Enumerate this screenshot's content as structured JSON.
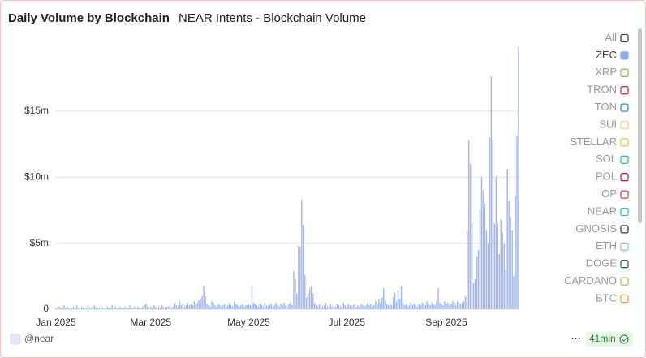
{
  "chart_data": {
    "type": "bar",
    "title": "Daily Volume by Blockchain",
    "subtitle": "NEAR Intents - Blockchain Volume",
    "color": "#a4b9f2",
    "ylim": [
      0,
      20.5
    ],
    "yticks": [
      0,
      {
        "value": 5,
        "label": "$5m"
      },
      {
        "value": 10,
        "label": "$10m"
      },
      {
        "value": 15,
        "label": "$15m"
      }
    ],
    "grid": true,
    "categories": [
      "Jan 2025",
      null,
      null,
      null,
      null,
      null,
      null,
      null,
      null,
      null,
      null,
      null,
      null,
      null,
      null,
      null,
      null,
      null,
      null,
      null,
      null,
      null,
      null,
      null,
      null,
      null,
      null,
      null,
      null,
      null,
      null,
      null,
      null,
      null,
      null,
      null,
      null,
      null,
      null,
      null,
      null,
      null,
      null,
      null,
      null,
      null,
      null,
      null,
      null,
      null,
      null,
      null,
      null,
      null,
      null,
      null,
      null,
      null,
      null,
      "Mar 2025",
      null,
      null,
      null,
      null,
      null,
      null,
      null,
      null,
      null,
      null,
      null,
      null,
      null,
      null,
      null,
      null,
      null,
      null,
      null,
      null,
      null,
      null,
      null,
      null,
      null,
      null,
      null,
      null,
      null,
      null,
      null,
      null,
      null,
      null,
      null,
      null,
      null,
      null,
      null,
      null,
      null,
      null,
      null,
      null,
      null,
      null,
      null,
      null,
      null,
      null,
      null,
      null,
      null,
      null,
      null,
      null,
      null,
      null,
      null,
      null,
      "May 2025",
      null,
      null,
      null,
      null,
      null,
      null,
      null,
      null,
      null,
      null,
      null,
      null,
      null,
      null,
      null,
      null,
      null,
      null,
      null,
      null,
      null,
      null,
      null,
      null,
      null,
      null,
      null,
      null,
      null,
      null,
      null,
      null,
      null,
      null,
      null,
      null,
      null,
      null,
      null,
      null,
      null,
      null,
      null,
      null,
      null,
      null,
      null,
      null,
      null,
      null,
      null,
      null,
      null,
      null,
      null,
      null,
      null,
      null,
      null,
      null,
      "Jul 2025",
      null,
      null,
      null,
      null,
      null,
      null,
      null,
      null,
      null,
      null,
      null,
      null,
      null,
      null,
      null,
      null,
      null,
      null,
      null,
      null,
      null,
      null,
      null,
      null,
      null,
      null,
      null,
      null,
      null,
      null,
      null,
      null,
      null,
      null,
      null,
      null,
      null,
      null,
      null,
      null,
      null,
      null,
      null,
      null,
      null,
      null,
      null,
      null,
      null,
      null,
      null,
      null,
      null,
      null,
      null,
      null,
      null,
      null,
      null,
      null,
      null,
      "Sep 2025",
      null,
      null,
      null,
      null,
      null,
      null,
      null,
      null,
      null,
      null,
      null,
      null,
      null,
      null,
      null,
      null,
      null,
      null,
      null,
      null,
      null,
      null,
      null,
      null,
      null,
      null,
      null,
      null,
      null,
      null,
      null,
      null,
      null,
      null,
      null,
      null,
      null,
      null,
      null,
      null,
      null,
      null,
      null,
      null,
      null
    ],
    "values": [
      0.1,
      0.05,
      0.2,
      0.1,
      0.1,
      0.3,
      0.1,
      0.2,
      0.1,
      0.05,
      0.1,
      0.2,
      0.1,
      0.3,
      0.1,
      0.1,
      0.2,
      0.1,
      0.05,
      0.1,
      0.2,
      0.1,
      0.1,
      0.2,
      0.3,
      0.1,
      0.1,
      0.1,
      0.2,
      0.1,
      0.05,
      0.1,
      0.2,
      0.1,
      0.1,
      0.3,
      0.1,
      0.2,
      0.1,
      0.1,
      0.2,
      0.1,
      0.1,
      0.2,
      0.1,
      0.1,
      0.3,
      0.1,
      0.1,
      0.2,
      0.1,
      0.2,
      0.1,
      0.1,
      0.2,
      0.3,
      0.4,
      0.2,
      0.1,
      0.2,
      0.1,
      0.3,
      0.2,
      0.1,
      0.2,
      0.1,
      0.3,
      0.2,
      0.1,
      0.2,
      0.2,
      0.3,
      0.1,
      0.2,
      0.5,
      0.3,
      0.2,
      0.6,
      0.3,
      0.4,
      0.2,
      0.3,
      0.5,
      0.3,
      0.4,
      0.3,
      0.6,
      0.4,
      0.5,
      0.7,
      0.8,
      1.0,
      1.8,
      1.0,
      0.4,
      0.3,
      0.2,
      0.6,
      0.5,
      0.3,
      0.2,
      0.4,
      0.3,
      0.2,
      0.3,
      0.4,
      0.2,
      0.3,
      0.5,
      0.3,
      0.2,
      0.6,
      0.4,
      0.3,
      0.2,
      0.3,
      0.4,
      0.2,
      0.3,
      0.3,
      0.4,
      0.3,
      1.8,
      0.5,
      0.4,
      0.3,
      0.2,
      0.4,
      0.3,
      0.2,
      0.5,
      0.3,
      0.2,
      0.3,
      0.4,
      0.2,
      0.3,
      0.5,
      0.3,
      0.2,
      0.4,
      0.3,
      0.5,
      0.3,
      0.2,
      0.4,
      0.5,
      0.3,
      2.9,
      2.3,
      1.2,
      4.8,
      4.7,
      8.3,
      6.4,
      2.6,
      0.9,
      1.2,
      1.6,
      1.8,
      1.2,
      0.5,
      0.3,
      0.2,
      0.4,
      0.3,
      0.2,
      0.3,
      0.5,
      0.2,
      0.3,
      0.4,
      0.2,
      0.3,
      0.2,
      0.4,
      0.3,
      0.2,
      0.3,
      0.5,
      0.3,
      0.2,
      0.4,
      0.3,
      0.2,
      0.3,
      0.4,
      0.2,
      0.3,
      0.2,
      0.4,
      0.3,
      0.2,
      0.3,
      0.5,
      0.3,
      0.4,
      0.2,
      0.3,
      0.6,
      0.4,
      0.8,
      0.5,
      0.9,
      1.6,
      0.7,
      0.4,
      0.3,
      0.5,
      0.3,
      0.9,
      1.2,
      0.6,
      1.4,
      0.8,
      1.8,
      0.5,
      0.3,
      0.4,
      0.2,
      0.3,
      0.5,
      0.3,
      0.4,
      0.3,
      0.2,
      0.4,
      0.3,
      0.5,
      0.4,
      0.3,
      0.6,
      0.4,
      0.3,
      0.5,
      0.4,
      0.3,
      0.6,
      1.6,
      0.5,
      0.4,
      0.3,
      0.6,
      0.4,
      0.5,
      0.3,
      0.4,
      0.6,
      0.5,
      0.3,
      0.6,
      0.5,
      0.4,
      0.5,
      0.6,
      1.0,
      5.9,
      12.8,
      11.0,
      6.5,
      2.0,
      2.3,
      4.0,
      4.5,
      7.5,
      10.0,
      9.0,
      8.0,
      6.0,
      5.0,
      13.0,
      17.6,
      12.8,
      6.5,
      10.0,
      6.5,
      4.2,
      6.8,
      5.8,
      5.0,
      3.0,
      10.6,
      8.2,
      7.0,
      6.0,
      2.5,
      8.6,
      13.1,
      19.9
    ],
    "legend": [
      {
        "name": "All",
        "color": "#444444"
      },
      {
        "name": "ZEC",
        "color": "#8fa9ef",
        "selected": true
      },
      {
        "name": "XRP",
        "color": "#8bc34a"
      },
      {
        "name": "TRON",
        "color": "#d32f2f"
      },
      {
        "name": "TON",
        "color": "#2196c9"
      },
      {
        "name": "SUI",
        "color": "#f5d76e"
      },
      {
        "name": "STELLAR",
        "color": "#f2c230"
      },
      {
        "name": "SOL",
        "color": "#26c99a"
      },
      {
        "name": "POL",
        "color": "#c2185b"
      },
      {
        "name": "OP",
        "color": "#e53935"
      },
      {
        "name": "NEAR",
        "color": "#2ec4a0"
      },
      {
        "name": "GNOSIS",
        "color": "#3a3a3a"
      },
      {
        "name": "ETH",
        "color": "#90c4e8"
      },
      {
        "name": "DOGE",
        "color": "#2e6b57"
      },
      {
        "name": "CARDANO",
        "color": "#a5c85a"
      },
      {
        "name": "BTC",
        "color": "#f0a030"
      }
    ],
    "source": "@near",
    "updated": "41min"
  }
}
